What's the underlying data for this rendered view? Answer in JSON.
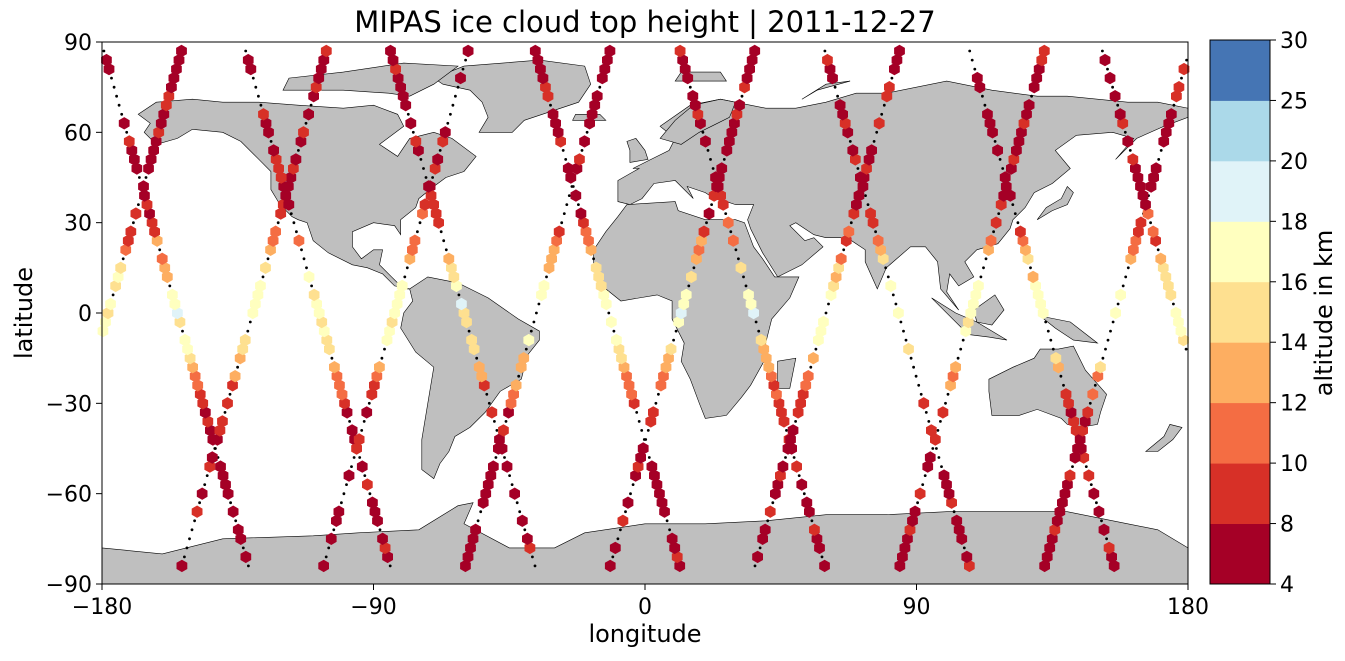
{
  "chart_data": {
    "type": "scatter",
    "title": "MIPAS ice cloud top height | 2011-12-27",
    "xlabel": "longitude",
    "ylabel": "latitude",
    "xlim": [
      -180,
      180
    ],
    "ylim": [
      -90,
      90
    ],
    "xticks": [
      -180,
      -90,
      0,
      90,
      180
    ],
    "yticks": [
      90,
      60,
      30,
      0,
      -30,
      -60,
      -90
    ],
    "grid": false,
    "colorbar": {
      "label": "altitude in km",
      "ticks": [
        4,
        8,
        10,
        12,
        14,
        16,
        18,
        20,
        25,
        30
      ],
      "bins": [
        {
          "from": 4,
          "to": 8,
          "color": "#a50026"
        },
        {
          "from": 8,
          "to": 10,
          "color": "#d73027"
        },
        {
          "from": 10,
          "to": 12,
          "color": "#f46d43"
        },
        {
          "from": 12,
          "to": 14,
          "color": "#fdae61"
        },
        {
          "from": 14,
          "to": 16,
          "color": "#fee090"
        },
        {
          "from": 16,
          "to": 18,
          "color": "#ffffbf"
        },
        {
          "from": 18,
          "to": 20,
          "color": "#e0f3f8"
        },
        {
          "from": 20,
          "to": 25,
          "color": "#abd9e9"
        },
        {
          "from": 25,
          "to": 30,
          "color": "#4575b4"
        }
      ]
    },
    "land_color": "#bfbfbf",
    "track_color": "#000000",
    "tracks": [
      {
        "direction": "descending",
        "lon_at_equator": -178
      },
      {
        "direction": "ascending",
        "lon_at_equator": -155
      },
      {
        "direction": "descending",
        "lon_at_equator": -130
      },
      {
        "direction": "ascending",
        "lon_at_equator": -108
      },
      {
        "direction": "descending",
        "lon_at_equator": -83
      },
      {
        "direction": "ascending",
        "lon_at_equator": -60
      },
      {
        "direction": "descending",
        "lon_at_equator": -36
      },
      {
        "direction": "ascending",
        "lon_at_equator": -12
      },
      {
        "direction": "descending",
        "lon_at_equator": 12
      },
      {
        "direction": "ascending",
        "lon_at_equator": 36
      },
      {
        "direction": "descending",
        "lon_at_equator": 60
      },
      {
        "direction": "ascending",
        "lon_at_equator": 84
      },
      {
        "direction": "descending",
        "lon_at_equator": 108
      },
      {
        "direction": "ascending",
        "lon_at_equator": 132
      },
      {
        "direction": "descending",
        "lon_at_equator": 156
      },
      {
        "direction": "ascending",
        "lon_at_equator": 176
      }
    ],
    "tropical_cloud_top_km": 17,
    "polar_cloud_top_km": 7
  }
}
